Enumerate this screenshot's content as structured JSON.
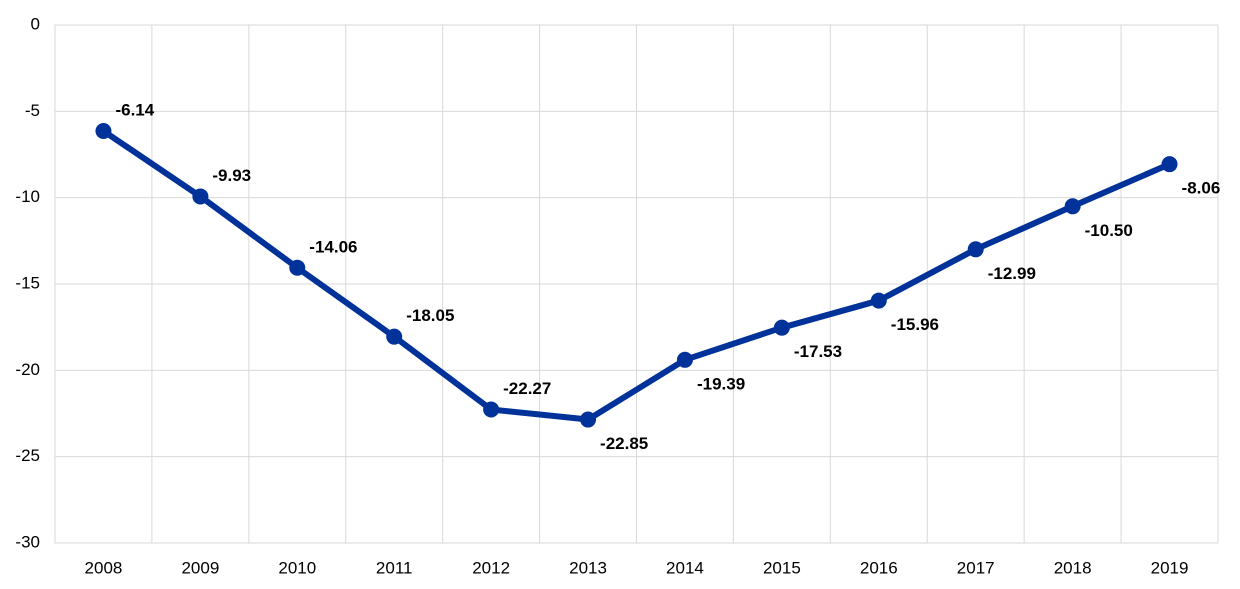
{
  "chart_data": {
    "type": "line",
    "categories": [
      "2008",
      "2009",
      "2010",
      "2011",
      "2012",
      "2013",
      "2014",
      "2015",
      "2016",
      "2017",
      "2018",
      "2019"
    ],
    "values": [
      -6.14,
      -9.93,
      -14.06,
      -18.05,
      -22.27,
      -22.85,
      -19.39,
      -17.53,
      -15.96,
      -12.99,
      -10.5,
      -8.06
    ],
    "value_labels": [
      "-6.14",
      "-9.93",
      "-14.06",
      "-18.05",
      "-22.27",
      "-22.85",
      "-19.39",
      "-17.53",
      "-15.96",
      "-12.99",
      "-10.50",
      "-8.06"
    ],
    "color": "#003299",
    "ylim": [
      -30,
      0
    ],
    "yticks": [
      0,
      -5,
      -10,
      -15,
      -20,
      -25,
      -30
    ],
    "grid": true
  }
}
